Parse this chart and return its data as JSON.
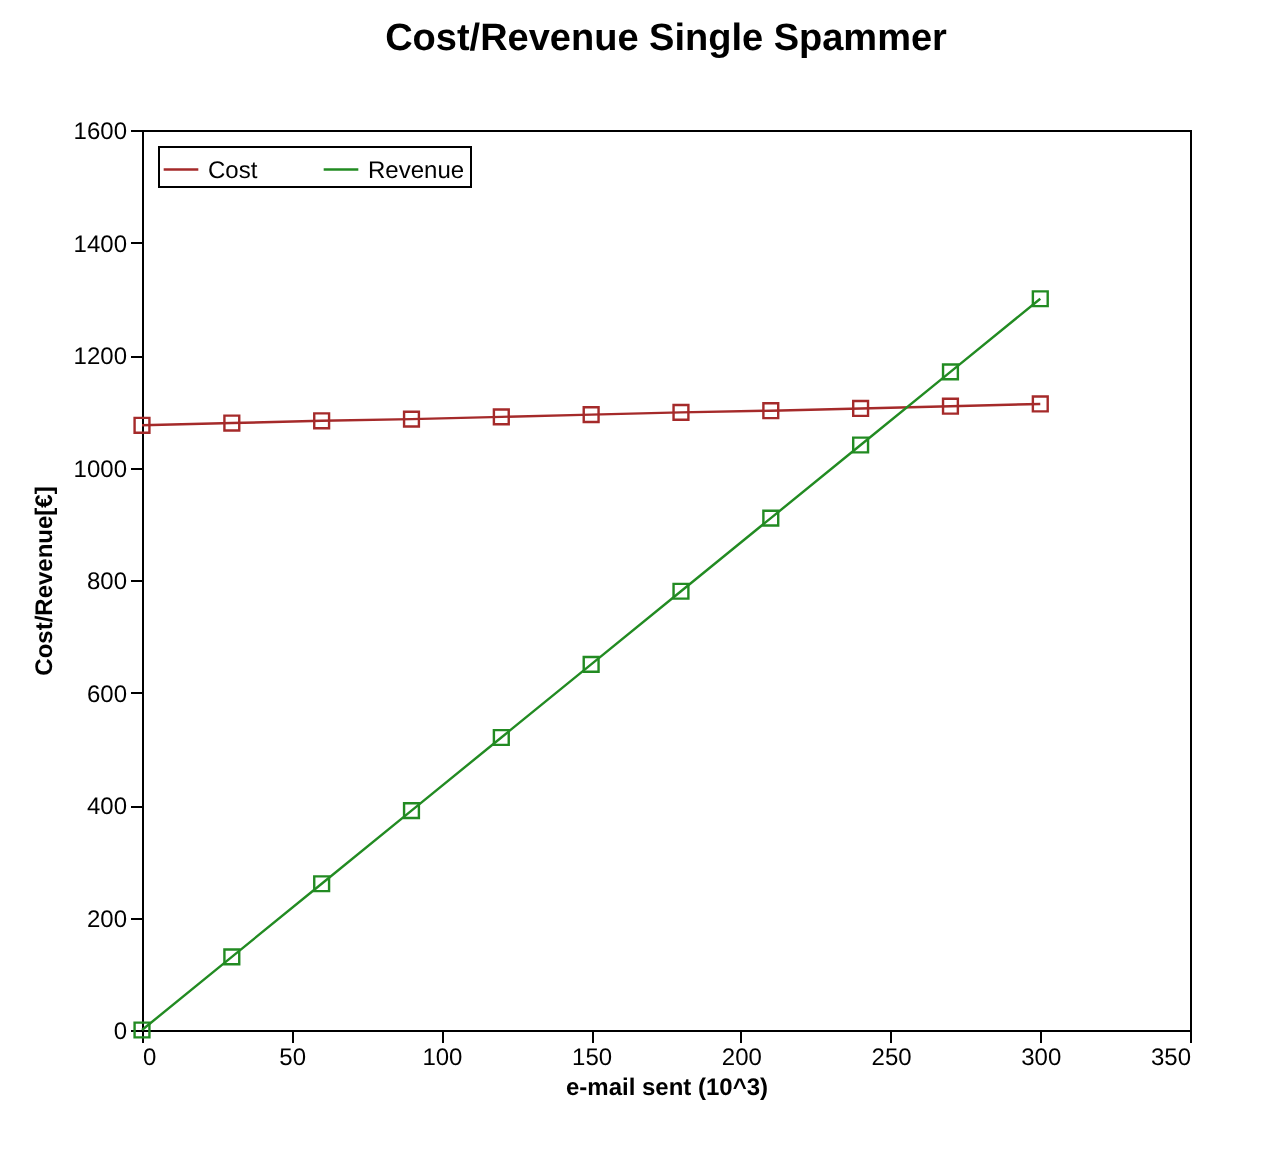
{
  "chart_data": {
    "type": "line",
    "title": "Cost/Revenue Single Spammer",
    "xlabel": "e-mail sent (10^3)",
    "ylabel": "Cost/Revenue[€]",
    "x": [
      0,
      30,
      60,
      90,
      120,
      150,
      180,
      210,
      240,
      270,
      300
    ],
    "series": [
      {
        "name": "Cost",
        "color": "#a52a2a",
        "values": [
          1075,
          1079,
          1083,
          1086,
          1090,
          1094,
          1098,
          1101,
          1105,
          1109,
          1113
        ]
      },
      {
        "name": "Revenue",
        "color": "#228b22",
        "values": [
          0,
          130,
          260,
          390,
          520,
          650,
          780,
          910,
          1040,
          1170,
          1300
        ]
      }
    ],
    "xlim": [
      0,
      350
    ],
    "xticks": [
      0,
      50,
      100,
      150,
      200,
      250,
      300,
      350
    ],
    "ylim": [
      0,
      1600
    ],
    "yticks": [
      0,
      200,
      400,
      600,
      800,
      1000,
      1200,
      1400,
      1600
    ],
    "grid": false,
    "legend": "top left",
    "marker": "square",
    "line_style": "solid"
  }
}
